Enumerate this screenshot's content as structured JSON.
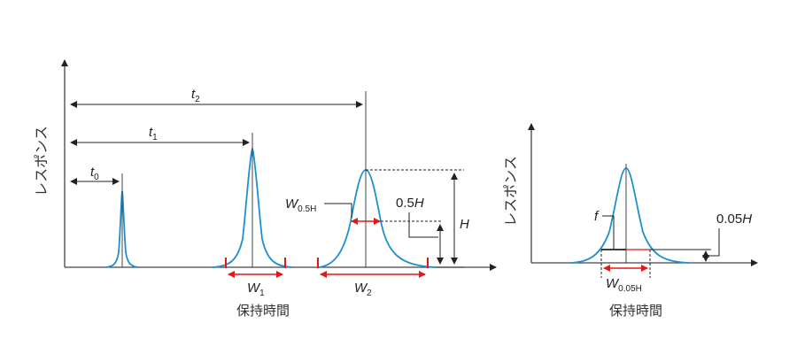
{
  "left_chart": {
    "y_axis_label": "レスポンス",
    "x_axis_label": "保持時間",
    "t0": "t",
    "t0_sub": "0",
    "t1": "t",
    "t1_sub": "1",
    "t2": "t",
    "t2_sub": "2",
    "w1": "W",
    "w1_sub": "1",
    "w2": "W",
    "w2_sub": "2",
    "w05": "W",
    "w05_sub": "0.5H",
    "half_h": "0.5",
    "half_h_var": "H",
    "h": "H"
  },
  "right_chart": {
    "y_axis_label": "レスポンス",
    "x_axis_label": "保持時間",
    "f": "f",
    "w005": "W",
    "w005_sub": "0.05H",
    "h005": "0.05",
    "h005_var": "H"
  },
  "colors": {
    "peak": "#1e8fd0",
    "width_marker": "#e01818",
    "axis": "#444444"
  }
}
